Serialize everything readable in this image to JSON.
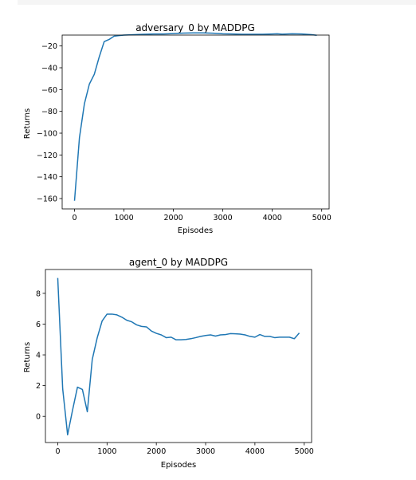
{
  "chart_data": [
    {
      "type": "line",
      "title": "adversary_0 by MADDPG",
      "xlabel": "Episodes",
      "ylabel": "Returns",
      "xlim": [
        -250,
        5150
      ],
      "ylim": [
        -169.5,
        -10
      ],
      "xticks": [
        0,
        1000,
        2000,
        3000,
        4000,
        5000
      ],
      "xtick_labels": [
        "0",
        "1000",
        "2000",
        "3000",
        "4000",
        "5000"
      ],
      "yticks": [
        -160,
        -140,
        -120,
        -100,
        -80,
        -60,
        -40,
        -20
      ],
      "ytick_labels": [
        "−160",
        "−140",
        "−120",
        "−100",
        "−80",
        "−60",
        "−40",
        "−20"
      ],
      "grid": false,
      "series": [
        {
          "color": "#1f77b4",
          "x": [
            0,
            100,
            200,
            300,
            400,
            500,
            600,
            700,
            800,
            900,
            1000,
            1200,
            1400,
            1600,
            1800,
            2000,
            2200,
            2400,
            2600,
            2800,
            3000,
            3200,
            3400,
            3600,
            3800,
            4000,
            4100,
            4200,
            4400,
            4600,
            4800,
            4900
          ],
          "y": [
            -162,
            -104,
            -73,
            -55,
            -46,
            -30,
            -16,
            -14,
            -11,
            -10.5,
            -10,
            -9.6,
            -9.3,
            -9,
            -9,
            -8.6,
            -8.2,
            -8,
            -8,
            -8.3,
            -8.8,
            -9,
            -9.3,
            -9.3,
            -9.3,
            -9,
            -8.8,
            -9.2,
            -8.8,
            -9,
            -9.6,
            -10.2
          ]
        }
      ]
    },
    {
      "type": "line",
      "title": "agent_0 by MADDPG",
      "xlabel": "Episodes",
      "ylabel": "Returns",
      "xlim": [
        -250,
        5150
      ],
      "ylim": [
        -1.7,
        9.55
      ],
      "xticks": [
        0,
        1000,
        2000,
        3000,
        4000,
        5000
      ],
      "xtick_labels": [
        "0",
        "1000",
        "2000",
        "3000",
        "4000",
        "5000"
      ],
      "yticks": [
        0,
        2,
        4,
        6,
        8
      ],
      "ytick_labels": [
        "0",
        "2",
        "4",
        "6",
        "8"
      ],
      "grid": false,
      "series": [
        {
          "color": "#1f77b4",
          "x": [
            0,
            100,
            200,
            300,
            400,
            500,
            600,
            700,
            800,
            900,
            1000,
            1100,
            1200,
            1300,
            1400,
            1500,
            1600,
            1700,
            1800,
            1900,
            2000,
            2100,
            2200,
            2300,
            2400,
            2500,
            2600,
            2700,
            2800,
            2900,
            3000,
            3100,
            3200,
            3300,
            3400,
            3500,
            3600,
            3700,
            3800,
            3900,
            4000,
            4100,
            4200,
            4300,
            4400,
            4500,
            4600,
            4700,
            4800,
            4900
          ],
          "y": [
            9.0,
            1.8,
            -1.2,
            0.4,
            1.9,
            1.75,
            0.3,
            3.7,
            5.1,
            6.2,
            6.65,
            6.65,
            6.6,
            6.45,
            6.25,
            6.15,
            5.95,
            5.85,
            5.82,
            5.55,
            5.4,
            5.3,
            5.12,
            5.15,
            4.98,
            4.98,
            5.0,
            5.05,
            5.12,
            5.2,
            5.26,
            5.3,
            5.22,
            5.3,
            5.32,
            5.38,
            5.37,
            5.35,
            5.3,
            5.2,
            5.15,
            5.32,
            5.2,
            5.2,
            5.12,
            5.15,
            5.15,
            5.15,
            5.05,
            5.42
          ]
        }
      ]
    }
  ]
}
